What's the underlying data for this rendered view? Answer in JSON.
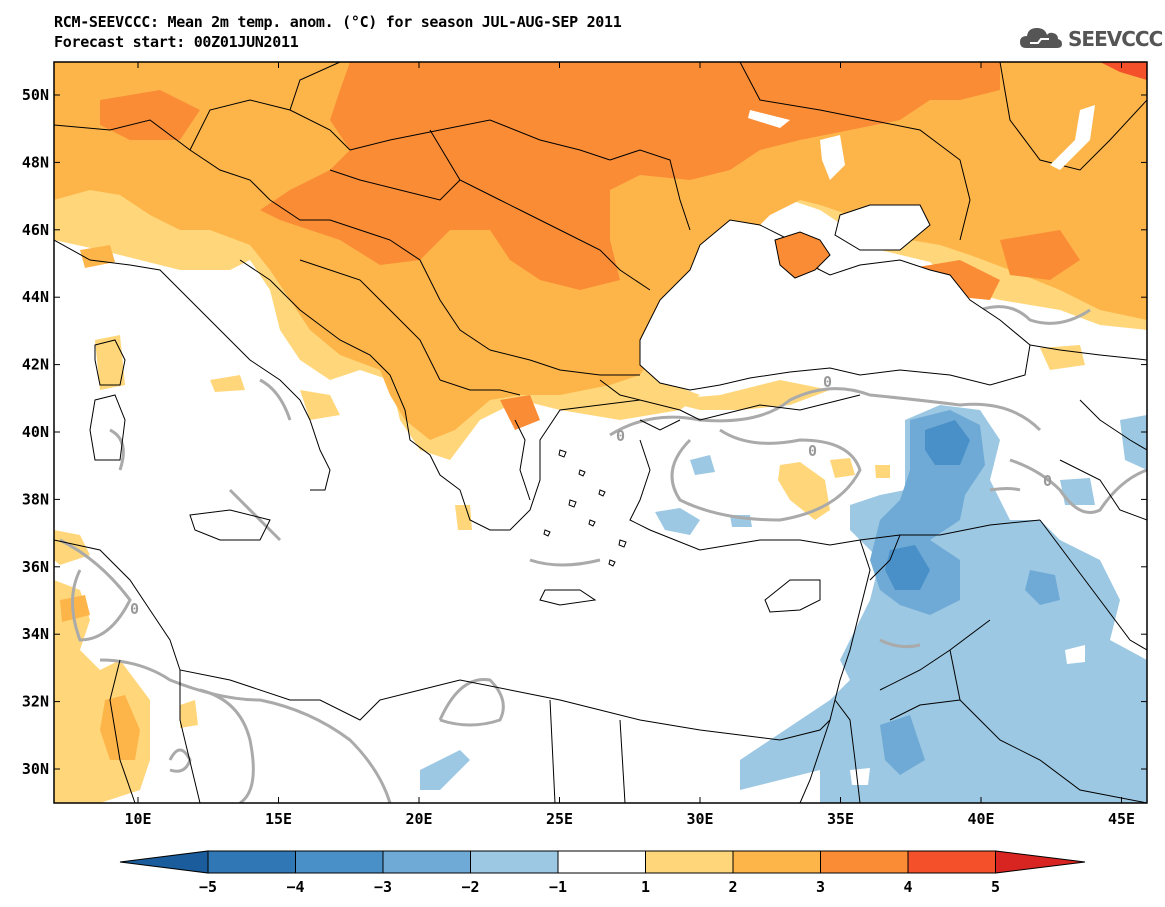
{
  "header": {
    "title_line1": "RCM-SEEVCCC: Mean 2m temp. anom. (°C) for season JUL-AUG-SEP 2011",
    "title_line2": "Forecast start: 00Z01JUN2011",
    "logo_text": "SEEVCCC"
  },
  "map": {
    "lon_labels": [
      "10E",
      "15E",
      "20E",
      "25E",
      "30E",
      "35E",
      "40E",
      "45E"
    ],
    "lat_labels": [
      "50N",
      "48N",
      "46N",
      "44N",
      "42N",
      "40N",
      "38N",
      "36N",
      "34N",
      "32N",
      "30N"
    ],
    "contour_label": "0"
  },
  "colorbar": {
    "ticks": [
      "-5",
      "-4",
      "-3",
      "-2",
      "-1",
      "1",
      "2",
      "3",
      "4",
      "5"
    ],
    "colors": [
      "#1b5d9c",
      "#2f78b5",
      "#4a90c8",
      "#6faad6",
      "#9cc8e3",
      "#ffffff",
      "#ffd77a",
      "#fdb54a",
      "#fa8c36",
      "#f4512b",
      "#d92521"
    ]
  },
  "colors": {
    "land_border": "#000000",
    "contour": "#aaaaaa",
    "frame": "#000000"
  }
}
